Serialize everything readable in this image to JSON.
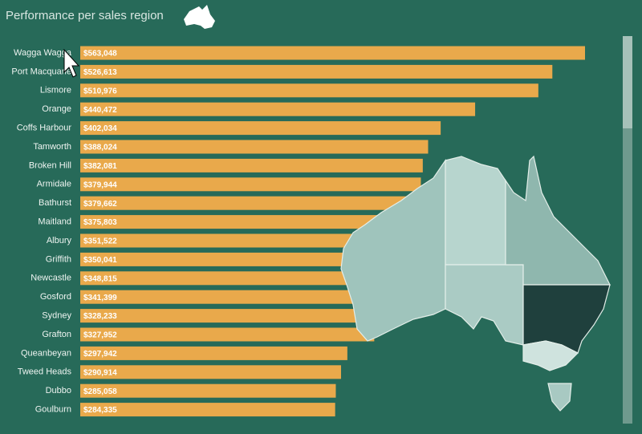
{
  "chart_data": {
    "type": "bar",
    "orientation": "horizontal",
    "title": "Performance per sales region",
    "categories": [
      "Wagga Wagga",
      "Port Macquarie",
      "Lismore",
      "Orange",
      "Coffs Harbour",
      "Tamworth",
      "Broken Hill",
      "Armidale",
      "Bathurst",
      "Maitland",
      "Albury",
      "Griffith",
      "Newcastle",
      "Gosford",
      "Sydney",
      "Grafton",
      "Queanbeyan",
      "Tweed Heads",
      "Dubbo",
      "Goulburn"
    ],
    "values": [
      563048,
      526613,
      510976,
      440472,
      402034,
      388024,
      382081,
      379944,
      379662,
      375803,
      351522,
      350041,
      348815,
      341399,
      328233,
      327952,
      297942,
      290914,
      285058,
      284335
    ],
    "value_labels": [
      "$563,048",
      "$526,613",
      "$510,976",
      "$440,472",
      "$402,034",
      "$388,024",
      "$382,081",
      "$379,944",
      "$379,662",
      "$375,803",
      "$351,522",
      "$350,041",
      "$348,815",
      "$341,399",
      "$328,233",
      "$327,952",
      "$297,942",
      "$290,914",
      "$285,058",
      "$284,335"
    ],
    "color": "#e9a94b"
  }
}
